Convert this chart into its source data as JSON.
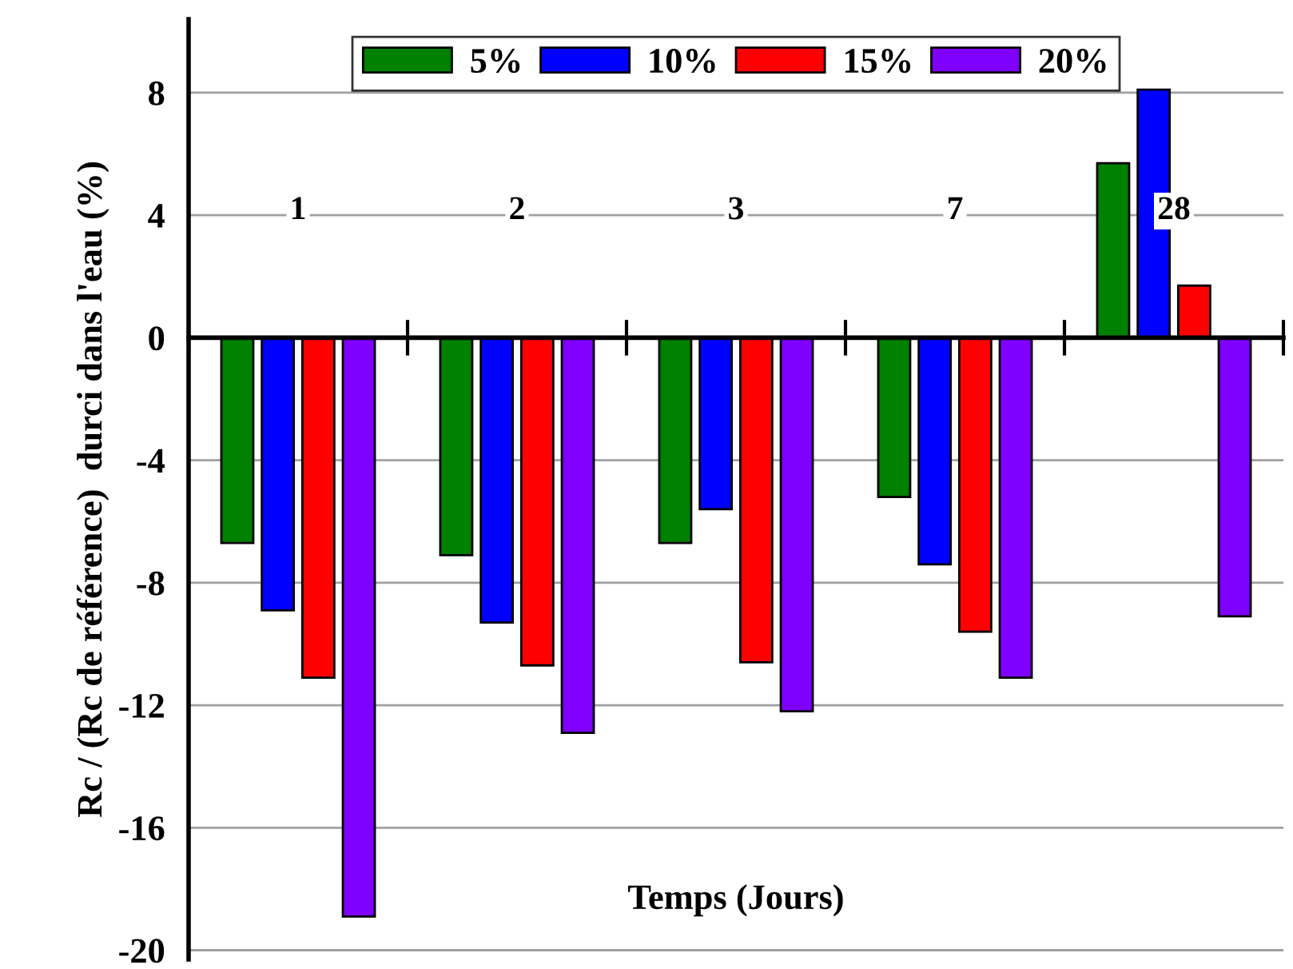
{
  "chart_data": {
    "type": "bar",
    "xlabel": "Temps (Jours)",
    "ylabel": "Rc / (Rc de référence)  durci dans l'eau (%)",
    "categories": [
      "1",
      "2",
      "3",
      "7",
      "28"
    ],
    "series": [
      {
        "name": "5%",
        "color": "#008000",
        "values": [
          -6.7,
          -7.1,
          -6.7,
          -5.2,
          5.7
        ]
      },
      {
        "name": "10%",
        "color": "#0000ff",
        "values": [
          -8.9,
          -9.3,
          -5.6,
          -7.4,
          8.1
        ]
      },
      {
        "name": "15%",
        "color": "#ff0000",
        "values": [
          -11.1,
          -10.7,
          -10.6,
          -9.6,
          1.7
        ]
      },
      {
        "name": "20%",
        "color": "#8000ff",
        "values": [
          -18.9,
          -12.9,
          -12.2,
          -11.1,
          -9.1
        ]
      }
    ],
    "ylim": [
      -20.3,
      10.4
    ],
    "yticks": [
      -20,
      -16,
      -12,
      -8,
      -4,
      0,
      4,
      8
    ],
    "grid": "y",
    "legend": "top"
  }
}
